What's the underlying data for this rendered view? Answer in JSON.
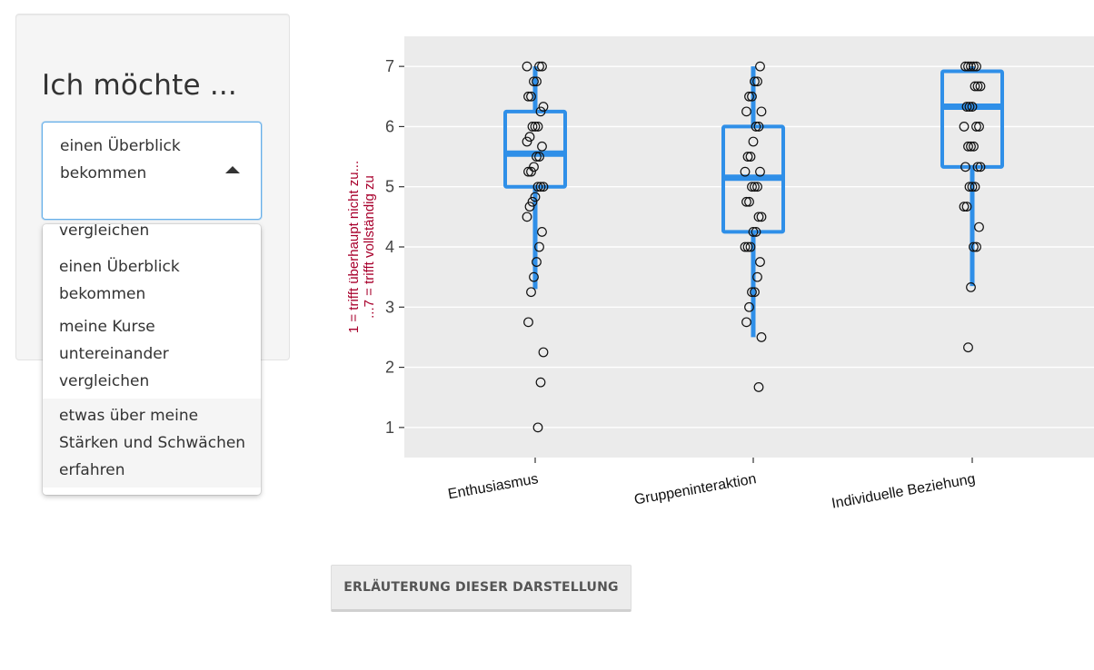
{
  "sidebar": {
    "title": "Ich möchte ...",
    "select": {
      "value": "einen Überblick bekommen"
    },
    "dropdown": {
      "partial_item": "vergleichen",
      "options": [
        {
          "label": "einen Überblick bekommen"
        },
        {
          "label": "meine Kurse untereinander vergleichen"
        },
        {
          "label": "etwas über meine Stärken und Schwächen erfahren"
        }
      ]
    }
  },
  "colors": {
    "box": "#2f8fe8",
    "panel_bg": "#ebebeb",
    "grid": "#ffffff",
    "ylabel": "#a8002c",
    "points": "#111111"
  },
  "chart_data": {
    "type": "boxplot",
    "ylim": [
      0.5,
      7.5
    ],
    "yticks": [
      1,
      2,
      3,
      4,
      5,
      6,
      7
    ],
    "ylabel_lines": [
      "1 = trifft überhaupt nicht zu...",
      "...7 = trifft vollständig zu"
    ],
    "grid": true,
    "categories": [
      "Enthusiasmus",
      "Gruppeninteraktion",
      "Individuelle Beziehung"
    ],
    "boxes": [
      {
        "category": "Enthusiasmus",
        "min": 3.3,
        "q1": 5.0,
        "median": 5.55,
        "q3": 6.25,
        "max": 7.0
      },
      {
        "category": "Gruppeninteraktion",
        "min": 2.5,
        "q1": 4.25,
        "median": 5.15,
        "q3": 6.0,
        "max": 7.0
      },
      {
        "category": "Individuelle Beziehung",
        "min": 3.35,
        "q1": 5.33,
        "median": 6.33,
        "q3": 6.92,
        "max": 7.0
      }
    ],
    "points": [
      [
        7.0,
        7.0,
        7.0,
        6.75,
        6.75,
        6.5,
        6.5,
        6.33,
        6.25,
        6.0,
        6.0,
        6.0,
        5.83,
        5.75,
        5.67,
        5.5,
        5.5,
        5.33,
        5.25,
        5.25,
        5.0,
        5.0,
        5.0,
        4.83,
        4.75,
        4.67,
        4.5,
        4.25,
        4.0,
        3.75,
        3.5,
        3.25,
        2.75,
        2.25,
        1.75,
        1.0
      ],
      [
        7.0,
        6.75,
        6.75,
        6.5,
        6.5,
        6.25,
        6.25,
        6.0,
        6.0,
        5.75,
        5.5,
        5.5,
        5.25,
        5.25,
        5.0,
        5.0,
        5.0,
        4.75,
        4.75,
        4.5,
        4.5,
        4.25,
        4.25,
        4.0,
        4.0,
        4.0,
        3.75,
        3.5,
        3.25,
        3.25,
        3.0,
        2.75,
        2.5,
        1.67
      ],
      [
        7.0,
        7.0,
        7.0,
        7.0,
        7.0,
        6.67,
        6.67,
        6.67,
        6.33,
        6.33,
        6.33,
        6.0,
        6.0,
        6.0,
        5.67,
        5.67,
        5.67,
        5.33,
        5.33,
        5.33,
        5.0,
        5.0,
        5.0,
        4.67,
        4.67,
        4.33,
        4.0,
        4.0,
        3.33,
        2.33
      ]
    ]
  },
  "footer": {
    "button_label": "ERLÄUTERUNG DIESER DARSTELLUNG"
  }
}
